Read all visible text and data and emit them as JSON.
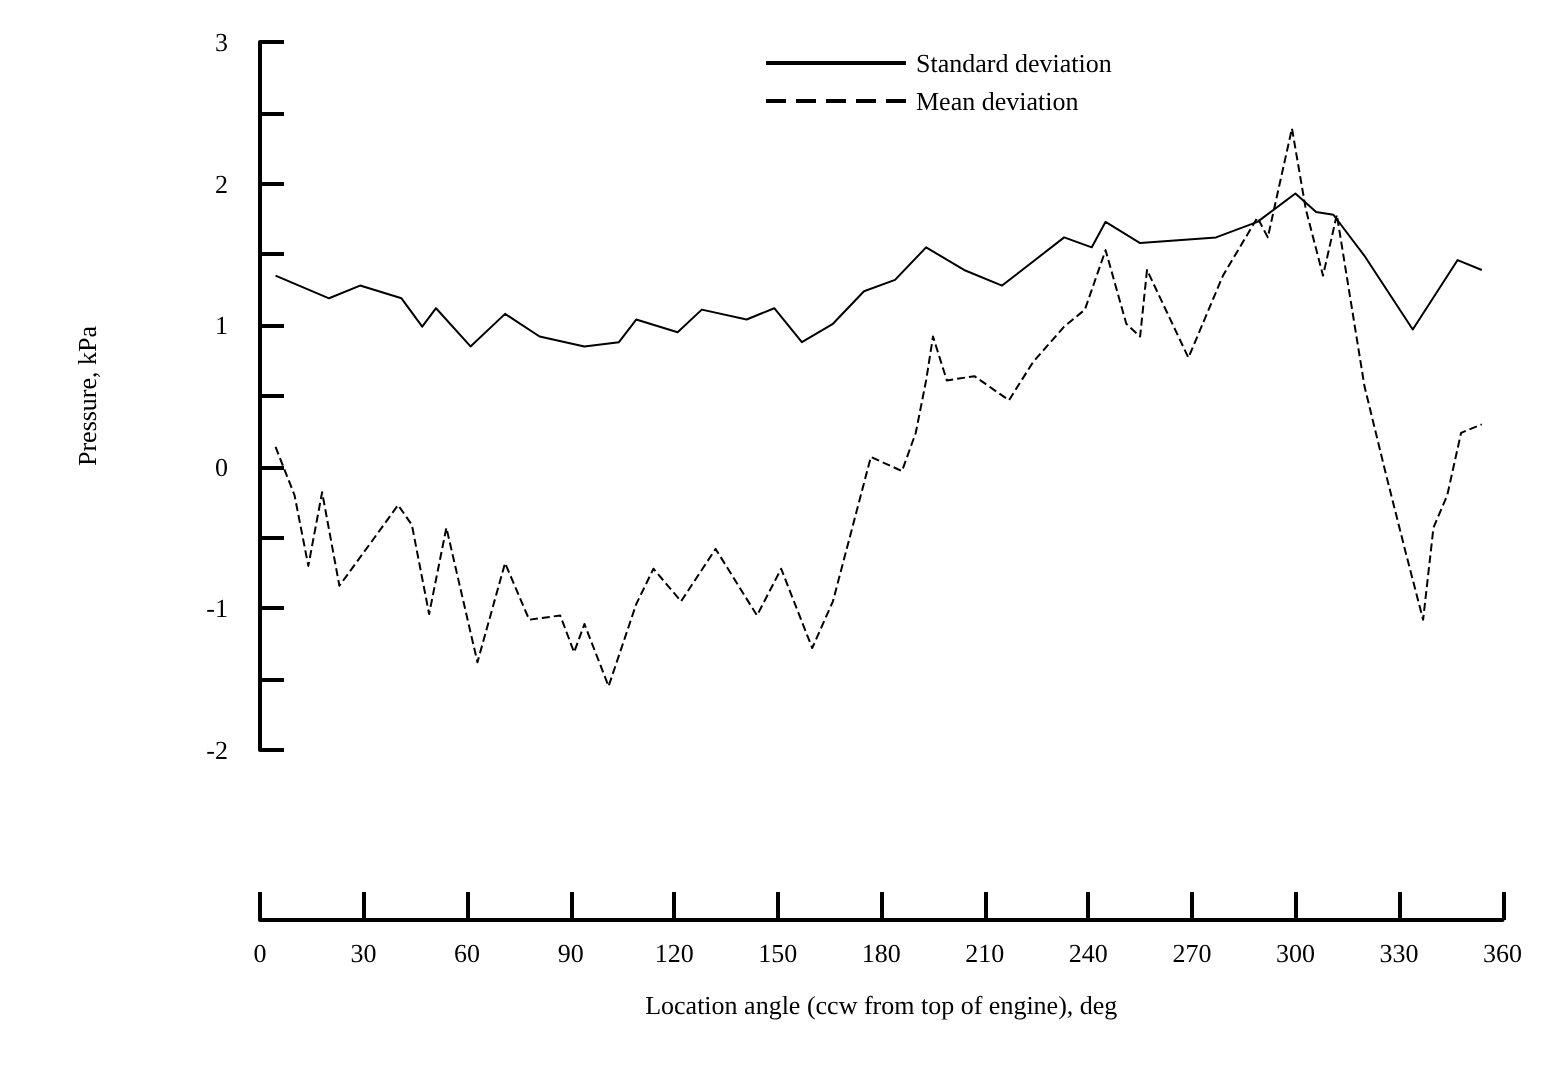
{
  "chart_data": {
    "type": "line",
    "xlabel": "Location angle (ccw from top of engine), deg",
    "ylabel": "Pressure, kPa",
    "xlim": [
      0,
      360
    ],
    "xticks": [
      0,
      30,
      60,
      90,
      120,
      150,
      180,
      210,
      240,
      270,
      300,
      330,
      360
    ],
    "ylim": [
      -2,
      3
    ],
    "yticks": [
      -2,
      {
        "value": -1.5,
        "label": null
      },
      -1,
      {
        "value": -0.5,
        "label": null
      },
      0,
      {
        "value": 0.5,
        "label": null
      },
      1,
      {
        "value": 1.5,
        "label": null
      },
      2,
      {
        "value": 2.5,
        "label": null
      },
      3
    ],
    "grid": false,
    "legend": "top",
    "marker": "none",
    "series": [
      {
        "name": "Standard deviation",
        "color": "#000000",
        "line_style": "solid",
        "x": [
          4.5,
          20,
          29,
          41,
          47,
          51,
          61,
          71,
          81,
          94,
          104,
          109,
          121,
          128,
          141,
          149,
          157,
          166,
          175,
          184,
          193,
          204,
          215,
          224,
          233,
          241,
          245,
          255,
          266,
          277,
          289,
          300,
          306,
          311,
          320,
          334,
          347,
          354
        ],
        "values": [
          1.35,
          1.19,
          1.28,
          1.19,
          0.99,
          1.12,
          0.85,
          1.08,
          0.92,
          0.85,
          0.88,
          1.04,
          0.95,
          1.11,
          1.04,
          1.12,
          0.88,
          1.01,
          1.24,
          1.32,
          1.55,
          1.39,
          1.28,
          1.45,
          1.62,
          1.55,
          1.73,
          1.58,
          1.6,
          1.62,
          1.73,
          1.93,
          1.8,
          1.78,
          1.49,
          0.97,
          1.46,
          1.39
        ]
      },
      {
        "name": "Mean deviation",
        "color": "#000000",
        "line_style": "dashed",
        "x": [
          4.5,
          10,
          14,
          18,
          23,
          32,
          40,
          44,
          49,
          54,
          63,
          71,
          78,
          87,
          91,
          94,
          101,
          109,
          114,
          122,
          132,
          144,
          151,
          160,
          166,
          177,
          186,
          190,
          193,
          195,
          199,
          207,
          217,
          224,
          233,
          239,
          245,
          251,
          255,
          257,
          269,
          279,
          289,
          292,
          299,
          303,
          308,
          312,
          320,
          326,
          332,
          337,
          340,
          344,
          348,
          354
        ],
        "values": [
          0.14,
          -0.2,
          -0.7,
          -0.18,
          -0.84,
          -0.54,
          -0.27,
          -0.41,
          -1.04,
          -0.43,
          -1.38,
          -0.68,
          -1.08,
          -1.05,
          -1.31,
          -1.11,
          -1.55,
          -0.97,
          -0.72,
          -0.95,
          -0.58,
          -1.05,
          -0.72,
          -1.28,
          -0.95,
          0.07,
          -0.03,
          0.24,
          0.61,
          0.92,
          0.61,
          0.64,
          0.47,
          0.74,
          0.99,
          1.11,
          1.53,
          1.01,
          0.92,
          1.39,
          0.77,
          1.35,
          1.76,
          1.62,
          2.39,
          1.82,
          1.35,
          1.78,
          0.57,
          -0.03,
          -0.61,
          -1.08,
          -0.43,
          -0.2,
          0.24,
          0.3
        ]
      }
    ]
  }
}
